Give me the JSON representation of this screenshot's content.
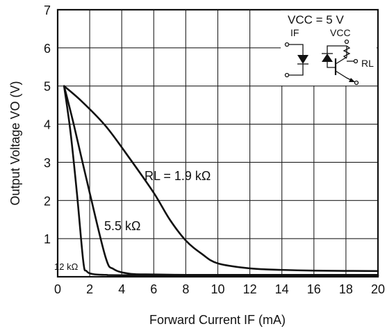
{
  "chart_data": {
    "type": "line",
    "xlabel": "Forward Current  IF (mA)",
    "ylabel": "Output Voltage  VO (V)",
    "xlim": [
      0,
      20
    ],
    "ylim": [
      0,
      7
    ],
    "xticks": [
      0,
      2,
      4,
      6,
      8,
      10,
      12,
      14,
      16,
      18,
      20
    ],
    "yticks": [
      1,
      2,
      3,
      4,
      5,
      6,
      7
    ],
    "grid": true,
    "series": [
      {
        "name": "RL = 1.9 kΩ",
        "x": [
          0.4,
          1.5,
          3,
          4.5,
          6,
          7,
          8,
          9,
          10,
          12,
          14,
          16,
          20
        ],
        "values": [
          5.0,
          4.6,
          3.95,
          3.1,
          2.2,
          1.5,
          0.95,
          0.6,
          0.35,
          0.22,
          0.18,
          0.16,
          0.15
        ]
      },
      {
        "name": "5.5 kΩ",
        "x": [
          0.4,
          1.0,
          2.0,
          3.0,
          3.5,
          4.5,
          6,
          8,
          10,
          20
        ],
        "values": [
          5.0,
          4.0,
          2.2,
          0.5,
          0.2,
          0.08,
          0.06,
          0.05,
          0.05,
          0.05
        ]
      },
      {
        "name": "12 kΩ",
        "x": [
          0.4,
          0.8,
          1.2,
          1.6,
          1.8,
          2.2,
          3,
          5,
          20
        ],
        "values": [
          5.0,
          3.8,
          2.2,
          0.4,
          0.15,
          0.07,
          0.05,
          0.04,
          0.03
        ]
      }
    ],
    "annotations": {
      "vcc_label": "VCC = 5 V",
      "if_label": "IF",
      "vcc_node": "VCC",
      "rl_label": "RL"
    }
  }
}
